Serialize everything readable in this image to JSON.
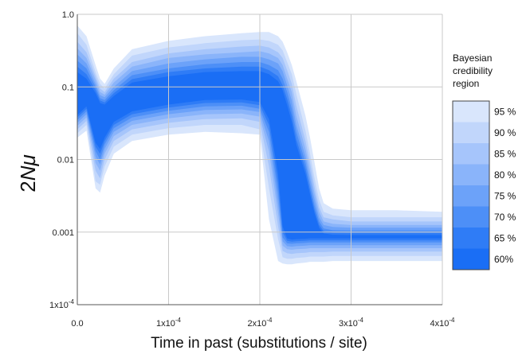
{
  "chart_data": {
    "type": "area",
    "xlabel": "Time in past (substitutions / site)",
    "ylabel": {
      "prefix": "2",
      "italic": "Nμ"
    },
    "x_scale": "linear",
    "y_scale": "log",
    "xlim": [
      0,
      0.0004
    ],
    "ylim": [
      0.0001,
      1.0
    ],
    "grid": true,
    "x_ticks": [
      {
        "value": 0,
        "label": "0.0"
      },
      {
        "value": 0.0001,
        "label": "1x10",
        "exp": "-4"
      },
      {
        "value": 0.0002,
        "label": "2x10",
        "exp": "-4"
      },
      {
        "value": 0.0003,
        "label": "3x10",
        "exp": "-4"
      },
      {
        "value": 0.0004,
        "label": "4x10",
        "exp": "-4"
      }
    ],
    "y_ticks": [
      {
        "value": 1.0,
        "label": "1.0"
      },
      {
        "value": 0.1,
        "label": "0.1"
      },
      {
        "value": 0.01,
        "label": "0.01"
      },
      {
        "value": 0.001,
        "label": "0.001"
      },
      {
        "value": 0.0001,
        "label": "1x10",
        "exp": "-4"
      }
    ],
    "legend": {
      "title": [
        "Bayesian",
        "credibility",
        "region"
      ],
      "placement": "right"
    },
    "x": [
      0,
      1e-05,
      2e-05,
      2.5e-05,
      3e-05,
      4e-05,
      6e-05,
      0.0001,
      0.00014,
      0.00018,
      0.0002,
      0.00021,
      0.00022,
      0.000225,
      0.00023,
      0.000235,
      0.00024,
      0.00025,
      0.000255,
      0.00026,
      0.000265,
      0.00027,
      0.00028,
      0.0003,
      0.00035,
      0.0004
    ],
    "series": [
      {
        "name": "95 %",
        "color": "#d9e6fc",
        "upper": [
          0.7,
          0.5,
          0.2,
          0.13,
          0.11,
          0.18,
          0.33,
          0.43,
          0.5,
          0.55,
          0.57,
          0.57,
          0.5,
          0.42,
          0.3,
          0.2,
          0.12,
          0.04,
          0.02,
          0.009,
          0.004,
          0.0025,
          0.0021,
          0.002,
          0.002,
          0.0019
        ],
        "lower": [
          0.02,
          0.025,
          0.004,
          0.0035,
          0.006,
          0.012,
          0.018,
          0.022,
          0.024,
          0.023,
          0.022,
          0.0015,
          0.0004,
          0.00037,
          0.00036,
          0.00036,
          0.00037,
          0.00038,
          0.00039,
          0.00039,
          0.00039,
          0.00039,
          0.0004,
          0.0004,
          0.0004,
          0.0004
        ]
      },
      {
        "name": "90 %",
        "color": "#c1d6fb",
        "upper": [
          0.55,
          0.38,
          0.16,
          0.11,
          0.095,
          0.15,
          0.27,
          0.35,
          0.4,
          0.44,
          0.45,
          0.43,
          0.38,
          0.32,
          0.22,
          0.15,
          0.08,
          0.025,
          0.012,
          0.0055,
          0.0028,
          0.0019,
          0.0017,
          0.0016,
          0.0016,
          0.0016
        ],
        "lower": [
          0.023,
          0.03,
          0.005,
          0.0045,
          0.008,
          0.015,
          0.022,
          0.027,
          0.03,
          0.03,
          0.026,
          0.004,
          0.0008,
          0.00045,
          0.00043,
          0.00043,
          0.00044,
          0.00045,
          0.00046,
          0.00046,
          0.00046,
          0.00046,
          0.00047,
          0.00047,
          0.00047,
          0.00047
        ]
      },
      {
        "name": "85 %",
        "color": "#a6c5fb",
        "upper": [
          0.42,
          0.3,
          0.14,
          0.095,
          0.085,
          0.13,
          0.22,
          0.29,
          0.33,
          0.36,
          0.37,
          0.35,
          0.3,
          0.25,
          0.17,
          0.11,
          0.055,
          0.018,
          0.009,
          0.0042,
          0.0022,
          0.0016,
          0.0015,
          0.0014,
          0.0014,
          0.0014
        ],
        "lower": [
          0.026,
          0.034,
          0.007,
          0.0055,
          0.01,
          0.018,
          0.026,
          0.032,
          0.036,
          0.037,
          0.033,
          0.008,
          0.0012,
          0.00055,
          0.00051,
          0.0005,
          0.00051,
          0.00052,
          0.00053,
          0.00053,
          0.00053,
          0.00053,
          0.00054,
          0.00054,
          0.00054,
          0.00054
        ]
      },
      {
        "name": "80 %",
        "color": "#8ab4fa",
        "upper": [
          0.34,
          0.25,
          0.125,
          0.085,
          0.078,
          0.115,
          0.19,
          0.25,
          0.28,
          0.3,
          0.31,
          0.29,
          0.25,
          0.2,
          0.13,
          0.085,
          0.04,
          0.014,
          0.007,
          0.0034,
          0.0019,
          0.0014,
          0.0013,
          0.00125,
          0.00125,
          0.00125
        ],
        "lower": [
          0.029,
          0.038,
          0.009,
          0.007,
          0.012,
          0.021,
          0.03,
          0.037,
          0.042,
          0.043,
          0.039,
          0.013,
          0.0018,
          0.00065,
          0.00058,
          0.00057,
          0.00058,
          0.00059,
          0.0006,
          0.0006,
          0.0006,
          0.0006,
          0.0006,
          0.0006,
          0.0006,
          0.0006
        ]
      },
      {
        "name": "75 %",
        "color": "#6ca2f9",
        "upper": [
          0.28,
          0.21,
          0.11,
          0.077,
          0.072,
          0.1,
          0.165,
          0.21,
          0.24,
          0.26,
          0.26,
          0.24,
          0.21,
          0.165,
          0.105,
          0.065,
          0.03,
          0.011,
          0.0055,
          0.0028,
          0.0016,
          0.00125,
          0.00118,
          0.00115,
          0.00115,
          0.00115
        ],
        "lower": [
          0.032,
          0.042,
          0.011,
          0.0085,
          0.014,
          0.024,
          0.034,
          0.042,
          0.048,
          0.049,
          0.045,
          0.018,
          0.0025,
          0.00075,
          0.00064,
          0.00063,
          0.00064,
          0.00065,
          0.00066,
          0.00066,
          0.00066,
          0.00066,
          0.00066,
          0.00066,
          0.00066,
          0.00066
        ]
      },
      {
        "name": "70 %",
        "color": "#4d8ff7",
        "upper": [
          0.23,
          0.18,
          0.1,
          0.07,
          0.066,
          0.09,
          0.145,
          0.18,
          0.205,
          0.22,
          0.22,
          0.2,
          0.17,
          0.13,
          0.085,
          0.05,
          0.024,
          0.009,
          0.0045,
          0.0023,
          0.0014,
          0.00112,
          0.00106,
          0.00105,
          0.00105,
          0.00105
        ],
        "lower": [
          0.035,
          0.046,
          0.013,
          0.01,
          0.016,
          0.027,
          0.038,
          0.047,
          0.054,
          0.055,
          0.05,
          0.024,
          0.0035,
          0.00085,
          0.0007,
          0.00069,
          0.0007,
          0.00071,
          0.00072,
          0.00072,
          0.00072,
          0.00072,
          0.00072,
          0.00072,
          0.00072,
          0.00072
        ]
      },
      {
        "name": "65 %",
        "color": "#2f7cf6",
        "upper": [
          0.19,
          0.15,
          0.09,
          0.065,
          0.061,
          0.082,
          0.128,
          0.16,
          0.18,
          0.19,
          0.19,
          0.17,
          0.14,
          0.105,
          0.068,
          0.04,
          0.019,
          0.0074,
          0.0038,
          0.002,
          0.00125,
          0.00103,
          0.00098,
          0.00097,
          0.00097,
          0.00097
        ],
        "lower": [
          0.038,
          0.05,
          0.015,
          0.012,
          0.018,
          0.03,
          0.042,
          0.052,
          0.06,
          0.061,
          0.056,
          0.03,
          0.0048,
          0.001,
          0.00076,
          0.00074,
          0.00075,
          0.00076,
          0.00077,
          0.00077,
          0.00077,
          0.00077,
          0.00077,
          0.00077,
          0.00077,
          0.00077
        ]
      },
      {
        "name": "60%",
        "color": "#1a6ef5",
        "upper": [
          0.16,
          0.13,
          0.082,
          0.06,
          0.057,
          0.075,
          0.115,
          0.14,
          0.16,
          0.165,
          0.165,
          0.15,
          0.12,
          0.09,
          0.056,
          0.033,
          0.016,
          0.0063,
          0.0033,
          0.0018,
          0.00115,
          0.00096,
          0.00092,
          0.00091,
          0.00091,
          0.00091
        ],
        "lower": [
          0.041,
          0.054,
          0.017,
          0.014,
          0.02,
          0.033,
          0.046,
          0.057,
          0.066,
          0.067,
          0.062,
          0.036,
          0.0065,
          0.0012,
          0.00082,
          0.00079,
          0.0008,
          0.00081,
          0.00082,
          0.00082,
          0.00082,
          0.00082,
          0.00082,
          0.00082,
          0.00082,
          0.00082
        ]
      }
    ]
  }
}
